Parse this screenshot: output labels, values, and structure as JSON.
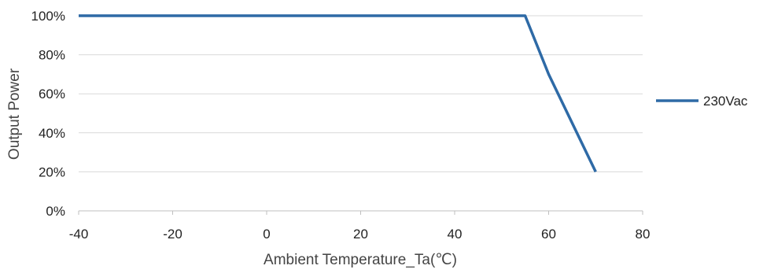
{
  "chart_data": {
    "type": "line",
    "xlabel": "Ambient Temperature_Ta(℃)",
    "ylabel": "Output Power",
    "xlim": [
      -40,
      80
    ],
    "ylim": [
      0,
      100
    ],
    "x_ticks": [
      -40,
      -20,
      0,
      20,
      40,
      60,
      80
    ],
    "y_ticks": [
      0,
      20,
      40,
      60,
      80,
      100
    ],
    "x_tick_labels": [
      "-40",
      "-20",
      "0",
      "20",
      "40",
      "60",
      "80"
    ],
    "y_tick_labels": [
      "0%",
      "20%",
      "40%",
      "60%",
      "80%",
      "100%"
    ],
    "grid": "horizontal",
    "legend_position": "right",
    "series": [
      {
        "name": "230Vac",
        "color": "#2e6aa6",
        "points": [
          {
            "x": -40,
            "y": 100
          },
          {
            "x": 55,
            "y": 100
          },
          {
            "x": 60,
            "y": 70
          },
          {
            "x": 70,
            "y": 20
          }
        ]
      }
    ]
  }
}
